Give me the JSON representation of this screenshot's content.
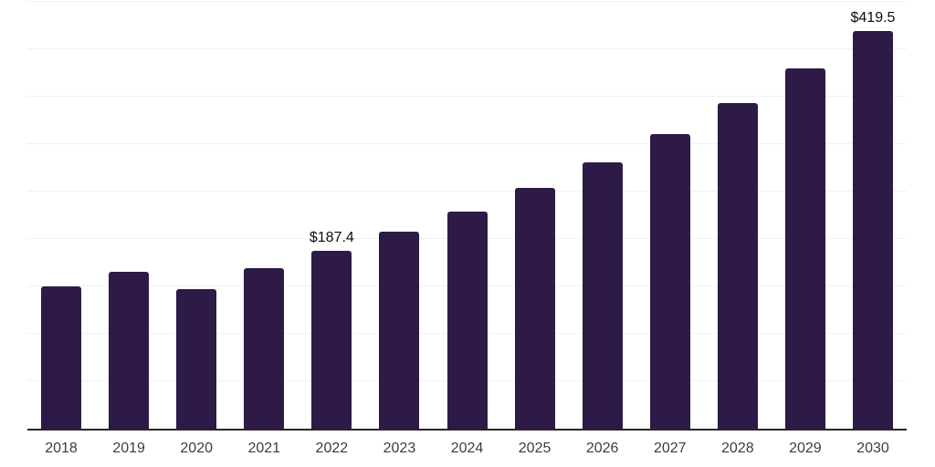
{
  "chart_data": {
    "type": "bar",
    "title": "",
    "xlabel": "",
    "ylabel": "",
    "categories": [
      "2018",
      "2019",
      "2020",
      "2021",
      "2022",
      "2023",
      "2024",
      "2025",
      "2026",
      "2027",
      "2028",
      "2029",
      "2030"
    ],
    "values": [
      149.8,
      165.0,
      146.9,
      168.9,
      187.4,
      207.3,
      229.3,
      253.6,
      280.5,
      310.2,
      343.1,
      379.4,
      419.5
    ],
    "data_labels": [
      "",
      "",
      "",
      "",
      "$187.4",
      "",
      "",
      "",
      "",
      "",
      "",
      "",
      "$419.5"
    ],
    "ylim": [
      0,
      450
    ],
    "grid_step": 50,
    "grid": true,
    "legend": false,
    "colors": {
      "background": "#ffffff",
      "bar": "#2e1a47",
      "axis_line": "#262626",
      "gridline": "#f1f1f1",
      "data_label": "#0d0d0d",
      "tick_label": "#3d3d3d"
    }
  }
}
